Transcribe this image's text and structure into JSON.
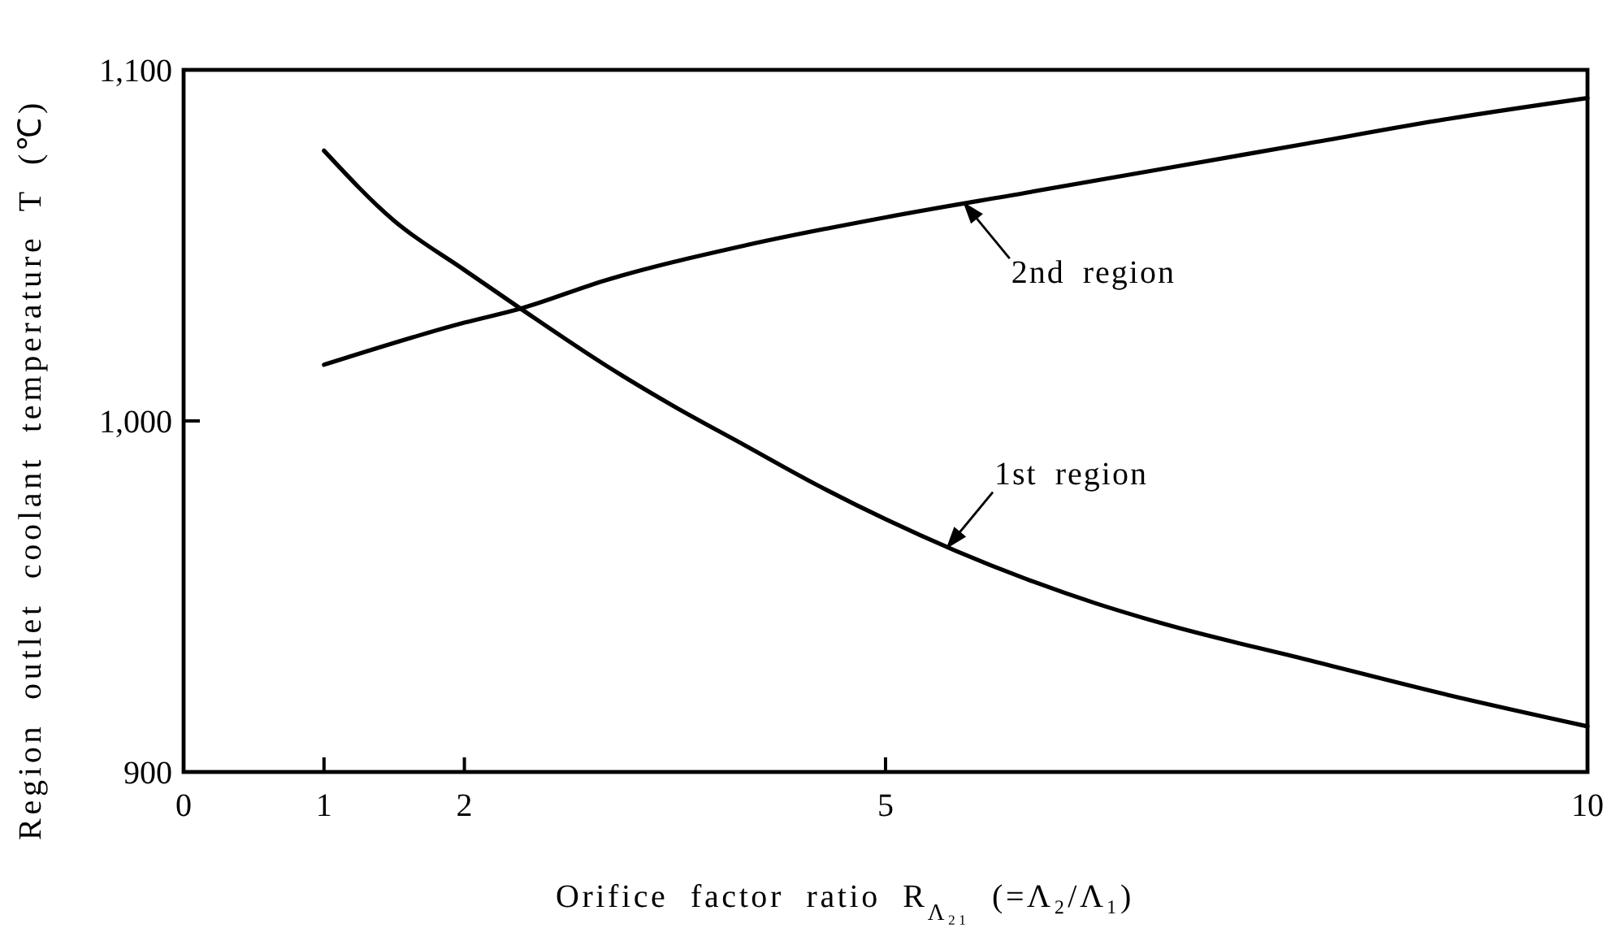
{
  "chart_data": {
    "type": "line",
    "xlabel": "Orifice factor ratio R$_{Λ₂₁}$ (=Λ₂/Λ₁)",
    "ylabel": "Region outlet coolant temperature T (℃)",
    "xlim": [
      0,
      10
    ],
    "ylim": [
      900,
      1100
    ],
    "xticks": [
      0,
      1,
      2,
      5,
      10
    ],
    "yticks": [
      900,
      {
        "value": 1000,
        "label": "1,000"
      },
      {
        "value": 1100,
        "label": "1,100"
      }
    ],
    "series": [
      {
        "color": "#000000",
        "x": [
          1,
          1.5,
          2,
          2.4,
          3,
          3.5,
          4,
          4.5,
          5,
          5.5,
          6,
          6.5,
          7,
          8,
          9,
          10
        ],
        "values": [
          1077,
          1057,
          1043,
          1032,
          1016,
          1004,
          993,
          982,
          972,
          963,
          955,
          948,
          942,
          932,
          922,
          913
        ]
      },
      {
        "color": "#000000",
        "x": [
          1,
          2,
          2.4,
          3,
          4,
          5,
          6,
          7,
          8,
          9,
          10
        ],
        "values": [
          1016,
          1028,
          1032,
          1040,
          1050,
          1058,
          1065,
          1072,
          1079,
          1086,
          1092
        ]
      }
    ],
    "annotations": [
      {
        "text": "2nd region",
        "x": 5.56,
        "y": 1062
      },
      {
        "text": "1st region",
        "x": 5.44,
        "y": 964
      }
    ]
  }
}
